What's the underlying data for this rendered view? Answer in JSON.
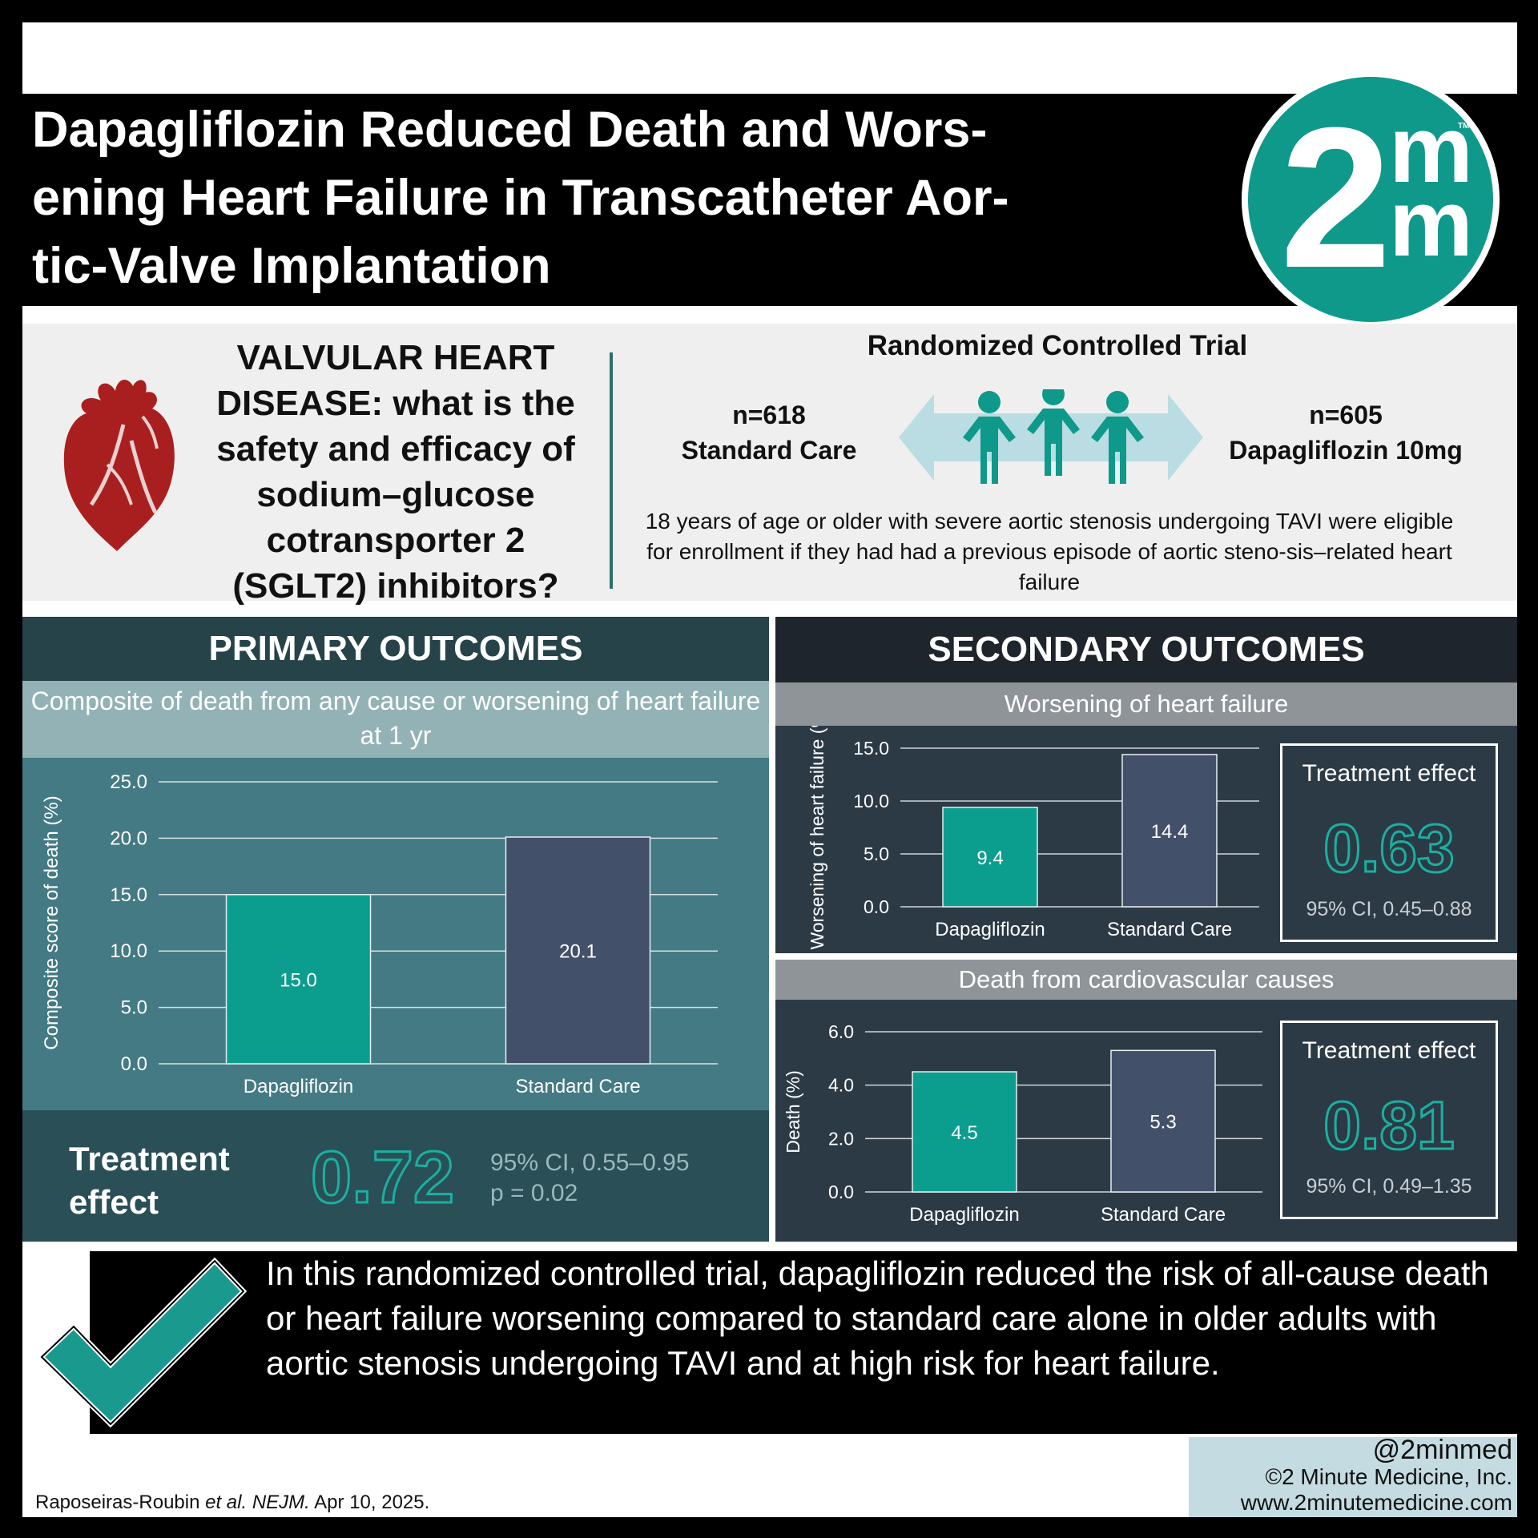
{
  "title": "Dapagliflozin Reduced Death and Wors-ening Heart Failure in Transcatheter Aor-tic-Valve Implantation",
  "title_lines": [
    "Dapagliflozin Reduced Death and Wors-",
    "ening Heart Failure in Transcatheter Aor-",
    "tic-Valve Implantation"
  ],
  "logo": {
    "numeral": "2",
    "letter_top": "m",
    "letter_bottom": "m",
    "tm": "TM",
    "color": "#0f998a"
  },
  "question": {
    "text": "VALVULAR HEART DISEASE: what is the safety and efficacy of sodium–glucose cotransporter 2 (SGLT2) inhibitors?",
    "icon": "heart-icon"
  },
  "trial": {
    "title": "Randomized Controlled Trial",
    "left_arm": {
      "n": "n=618",
      "label": "Standard Care"
    },
    "right_arm": {
      "n": "n=605",
      "label": "Dapagliflozin 10mg"
    },
    "eligibility": "18 years of age or older with severe aortic stenosis undergoing TAVI were eligible for enrollment if they had had a previous episode of aortic steno-sis–related heart failure",
    "icon": "people-icon"
  },
  "primary": {
    "heading": "PRIMARY OUTCOMES",
    "subheading": "Composite of death from any cause or worsening of heart failure at 1 yr",
    "effect_label": "Treatment effect",
    "effect_value": "0.72",
    "ci": "95% CI, 0.55–0.95",
    "p": "p = 0.02"
  },
  "secondary": {
    "heading": "SECONDARY OUTCOMES",
    "outcome1": {
      "subheading": "Worsening of heart failure",
      "effect_label": "Treatment effect",
      "effect_value": "0.63",
      "ci": "95% CI, 0.45–0.88"
    },
    "outcome2": {
      "subheading": "Death from cardiovascular causes",
      "effect_label": "Treatment effect",
      "effect_value": "0.81",
      "ci": "95% CI, 0.49–1.35"
    }
  },
  "chart_data": [
    {
      "type": "bar",
      "categories": [
        "Dapagliflozin",
        "Standard Care"
      ],
      "values": [
        15.0,
        20.1
      ],
      "labels": [
        "15.0",
        "20.1"
      ],
      "ylabel": "Composite score of death (%)",
      "yticks": [
        "0.0",
        "5.0",
        "10.0",
        "15.0",
        "20.0",
        "25.0"
      ],
      "ylim": [
        0,
        25
      ],
      "grid": true,
      "colors": [
        "#0b9e8e",
        "#43506a"
      ]
    },
    {
      "type": "bar",
      "categories": [
        "Dapagliflozin",
        "Standard Care"
      ],
      "values": [
        9.4,
        14.4
      ],
      "labels": [
        "9.4",
        "14.4"
      ],
      "ylabel": "Worsening of heart failure (%)",
      "yticks": [
        "0.0",
        "5.0",
        "10.0",
        "15.0"
      ],
      "ylim": [
        0,
        15
      ],
      "grid": true,
      "colors": [
        "#0b9e8e",
        "#43506a"
      ]
    },
    {
      "type": "bar",
      "categories": [
        "Dapagliflozin",
        "Standard Care"
      ],
      "values": [
        4.5,
        5.3
      ],
      "labels": [
        "4.5",
        "5.3"
      ],
      "ylabel": "Death (%)",
      "yticks": [
        "0.0",
        "2.0",
        "4.0",
        "6.0"
      ],
      "ylim": [
        0,
        6
      ],
      "grid": true,
      "colors": [
        "#0b9e8e",
        "#43506a"
      ]
    }
  ],
  "conclusion": {
    "text": "In this randomized controlled trial, dapagliflozin reduced the risk of all-cause death or heart failure worsening compared to standard care alone in older adults with aortic stenosis undergoing TAVI and at high risk for heart failure.",
    "icon": "checkmark-icon"
  },
  "credit": {
    "handle": "@2minmed",
    "company": "©2 Minute Medicine, Inc.",
    "url": "www.2minutemedicine.com"
  },
  "citation": {
    "authors": "Raposeiras-Roubin",
    "etal": " et al.",
    "journal": " NEJM.",
    "date": " Apr 10, 2025."
  }
}
